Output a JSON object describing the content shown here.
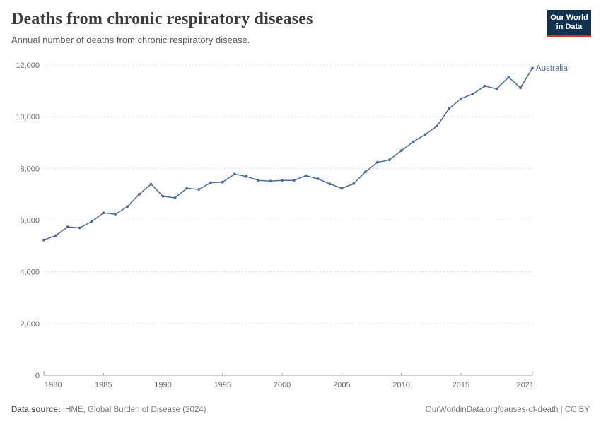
{
  "header": {
    "title": "Deaths from chronic respiratory diseases",
    "subtitle": "Annual number of deaths from chronic respiratory disease.",
    "logo": {
      "line1": "Our World",
      "line2": "in Data",
      "bg_color": "#12304F",
      "accent_color": "#CB392B"
    }
  },
  "chart_data": {
    "type": "line",
    "title": "Deaths from chronic respiratory diseases",
    "xlabel": "",
    "ylabel": "",
    "xlim": [
      1980,
      2021
    ],
    "ylim": [
      0,
      12000
    ],
    "grid": "horizontal-dashed",
    "legend_position": "end-of-line-label",
    "x_ticks": [
      1980,
      1985,
      1990,
      1995,
      2000,
      2005,
      2010,
      2015,
      2021
    ],
    "y_ticks": [
      0,
      2000,
      4000,
      6000,
      8000,
      10000,
      12000
    ],
    "x": [
      1980,
      1981,
      1982,
      1983,
      1984,
      1985,
      1986,
      1987,
      1988,
      1989,
      1990,
      1991,
      1992,
      1993,
      1994,
      1995,
      1996,
      1997,
      1998,
      1999,
      2000,
      2001,
      2002,
      2003,
      2004,
      2005,
      2006,
      2007,
      2008,
      2009,
      2010,
      2011,
      2012,
      2013,
      2014,
      2015,
      2016,
      2017,
      2018,
      2019,
      2020,
      2021
    ],
    "series": [
      {
        "name": "Australia",
        "values": [
          5230,
          5400,
          5740,
          5700,
          5940,
          6280,
          6230,
          6520,
          7000,
          7390,
          6920,
          6860,
          7230,
          7190,
          7450,
          7470,
          7780,
          7690,
          7540,
          7510,
          7540,
          7540,
          7720,
          7600,
          7400,
          7230,
          7410,
          7870,
          8240,
          8330,
          8690,
          9030,
          9310,
          9640,
          10310,
          10700,
          10880,
          11190,
          11080,
          11530,
          11120,
          11880
        ]
      }
    ],
    "line_color": "#4C6A9C",
    "axis_text_color": "#6b6b6b",
    "gridline_color": "#d9d9d9",
    "axis_line_color": "#9e9e9e"
  },
  "footer": {
    "datasource_label": "Data source:",
    "datasource_value": "IHME, Global Burden of Disease (2024)",
    "link": "OurWorldinData.org/causes-of-death | CC BY"
  }
}
